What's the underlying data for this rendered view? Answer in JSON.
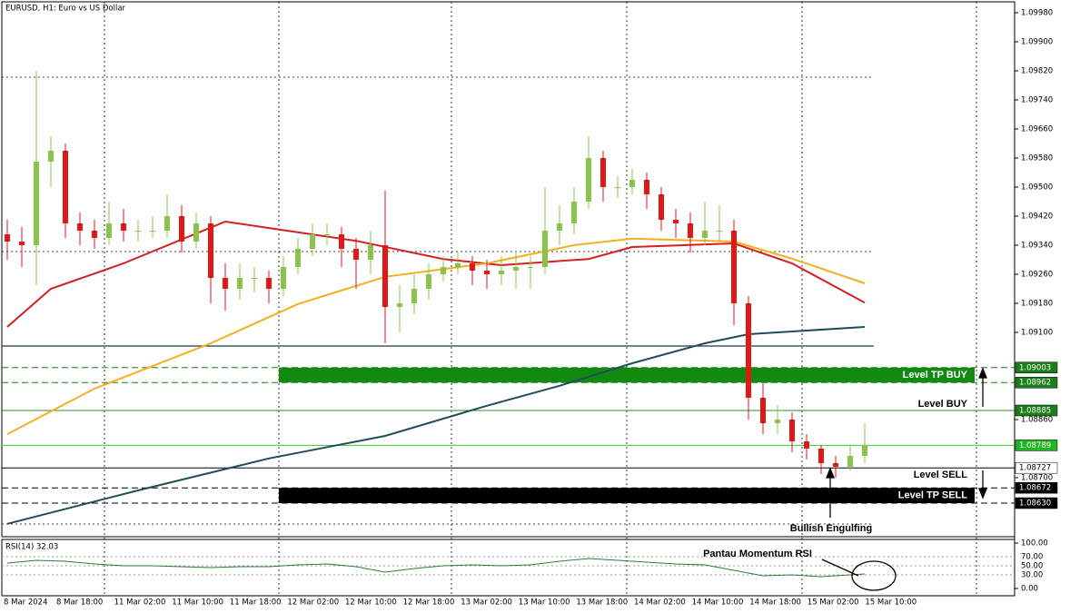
{
  "header": {
    "title": "EURUSD, H1:  Euro vs US Dollar"
  },
  "price_axis": {
    "ticks": [
      {
        "value": 1.0998,
        "label": "1.09980"
      },
      {
        "value": 1.099,
        "label": "1.09900"
      },
      {
        "value": 1.0982,
        "label": "1.09820"
      },
      {
        "value": 1.0974,
        "label": "1.09740"
      },
      {
        "value": 1.0966,
        "label": "1.09660"
      },
      {
        "value": 1.0958,
        "label": "1.09580"
      },
      {
        "value": 1.095,
        "label": "1.09500"
      },
      {
        "value": 1.0942,
        "label": "1.09420"
      },
      {
        "value": 1.0934,
        "label": "1.09340"
      },
      {
        "value": 1.0926,
        "label": "1.09260"
      },
      {
        "value": 1.0918,
        "label": "1.09180"
      },
      {
        "value": 1.091,
        "label": "1.09100"
      },
      {
        "value": 1.0886,
        "label": "1.08860"
      },
      {
        "value": 1.087,
        "label": "1.08700"
      }
    ]
  },
  "levels": [
    {
      "value": 1.09003,
      "label": "1.09003",
      "style": "dashed",
      "color": "#1b7f1b",
      "box": "#1b7f1b"
    },
    {
      "value": 1.08962,
      "label": "1.08962",
      "style": "dashed",
      "color": "#1b7f1b",
      "box": "#1b7f1b"
    },
    {
      "value": 1.08885,
      "label": "1.08885",
      "style": "solid",
      "color": "#2e8b2e",
      "box": "#1b7f1b"
    },
    {
      "value": 1.08789,
      "label": "1.08789",
      "style": "solid",
      "color": "#33cc33",
      "box": "#22b522"
    },
    {
      "value": 1.08727,
      "label": "1.08727",
      "style": "solid",
      "color": "#000000",
      "box": "#ffffff"
    },
    {
      "value": 1.08672,
      "label": "1.08672",
      "style": "dashed",
      "color": "#000000",
      "box": "#000000"
    },
    {
      "value": 1.0863,
      "label": "1.08630",
      "style": "dashed",
      "color": "#000000",
      "box": "#000000"
    }
  ],
  "annotations": {
    "tp_buy": "Level TP BUY",
    "buy": "Level BUY",
    "sell": "Level SELL",
    "tp_sell": "Level TP SELL",
    "engulfing": "Bullish Engulfing",
    "rsi_note": "Pantau Momentum RSI"
  },
  "candles": {
    "open": [
      1.0937,
      1.0935,
      1.0934,
      1.0957,
      1.096,
      1.094,
      1.0938,
      1.0936,
      1.094,
      1.0938,
      1.0938,
      1.0938,
      1.0942,
      1.0935,
      1.094,
      1.0925,
      1.0922,
      1.0925,
      1.0925,
      1.0922,
      1.0928,
      1.0933,
      1.0937,
      1.0937,
      1.0933,
      1.093,
      1.0934,
      1.0917,
      1.0918,
      1.0922,
      1.0926,
      1.0928,
      1.0929,
      1.0927,
      1.0926,
      1.0927,
      1.0928,
      1.0928,
      1.0938,
      1.094,
      1.0946,
      1.0958,
      1.095,
      1.095,
      1.0952,
      1.0948,
      1.0941,
      1.094,
      1.0936,
      1.0938,
      1.0938,
      1.0918,
      1.0892,
      1.0885,
      1.0886,
      1.088,
      1.0878,
      1.0874,
      1.0873,
      1.0876
    ],
    "high": [
      1.0941,
      1.0939,
      1.0982,
      1.0964,
      1.0962,
      1.0943,
      1.0941,
      1.0946,
      1.0944,
      1.0941,
      1.0942,
      1.0948,
      1.0945,
      1.0943,
      1.0942,
      1.0929,
      1.0929,
      1.0928,
      1.0927,
      1.0931,
      1.0936,
      1.094,
      1.094,
      1.0939,
      1.0936,
      1.0938,
      1.0949,
      1.0923,
      1.0926,
      1.0929,
      1.0931,
      1.0932,
      1.0931,
      1.093,
      1.0931,
      1.0932,
      1.0931,
      1.095,
      1.0945,
      1.095,
      1.0964,
      1.096,
      1.0953,
      1.0955,
      1.0954,
      1.095,
      1.0944,
      1.0943,
      1.0946,
      1.0945,
      1.0941,
      1.092,
      1.0896,
      1.089,
      1.0888,
      1.0882,
      1.0879,
      1.0876,
      1.0879,
      1.0885
    ],
    "low": [
      1.093,
      1.0928,
      1.0923,
      1.095,
      1.0936,
      1.0934,
      1.0933,
      1.0934,
      1.0935,
      1.0935,
      1.0936,
      1.0936,
      1.0932,
      1.0933,
      1.0918,
      1.0916,
      1.0919,
      1.0921,
      1.0918,
      1.092,
      1.0926,
      1.0931,
      1.0934,
      1.0928,
      1.0922,
      1.0926,
      1.0907,
      1.091,
      1.0915,
      1.0919,
      1.0924,
      1.0926,
      1.0923,
      1.0922,
      1.0923,
      1.0922,
      1.0922,
      1.0926,
      1.0934,
      1.0937,
      1.0944,
      1.0946,
      1.0947,
      1.0948,
      1.0944,
      1.0938,
      1.0936,
      1.0932,
      1.0934,
      1.0935,
      1.0912,
      1.0886,
      1.0882,
      1.0882,
      1.0877,
      1.0875,
      1.0871,
      1.087,
      1.0872,
      1.0874
    ],
    "close": [
      1.0935,
      1.0934,
      1.0957,
      1.096,
      1.094,
      1.0938,
      1.0936,
      1.094,
      1.0938,
      1.0938,
      1.0938,
      1.0942,
      1.0935,
      1.094,
      1.0925,
      1.0922,
      1.0925,
      1.0925,
      1.0922,
      1.0928,
      1.0933,
      1.0937,
      1.0937,
      1.0933,
      1.093,
      1.0934,
      1.0917,
      1.0918,
      1.0922,
      1.0926,
      1.0928,
      1.0929,
      1.0927,
      1.0926,
      1.0927,
      1.0928,
      1.0928,
      1.0938,
      1.094,
      1.0946,
      1.0958,
      1.095,
      1.095,
      1.0952,
      1.0948,
      1.0941,
      1.094,
      1.0936,
      1.0938,
      1.0938,
      1.0918,
      1.0892,
      1.0885,
      1.0886,
      1.088,
      1.0878,
      1.0874,
      1.0873,
      1.0876,
      1.0879
    ]
  },
  "moving_averages": [
    {
      "color": "#d42020",
      "x": [
        0,
        3,
        8,
        15,
        24,
        30,
        34,
        40,
        43,
        50,
        54,
        59
      ],
      "y": [
        1.09115,
        1.0922,
        1.0929,
        1.09405,
        1.09352,
        1.09302,
        1.09285,
        1.09302,
        1.09335,
        1.09345,
        1.0929,
        1.09182
      ]
    },
    {
      "color": "#f2b01e",
      "x": [
        0,
        6,
        14,
        20,
        26,
        33,
        39,
        43,
        50,
        54,
        59
      ],
      "y": [
        1.0882,
        1.08945,
        1.0907,
        1.09178,
        1.09253,
        1.0929,
        1.0934,
        1.09358,
        1.0935,
        1.09303,
        1.09235
      ]
    },
    {
      "color": "#1f4e5a",
      "x": [
        0,
        9,
        18,
        26,
        33,
        38,
        43,
        48,
        51,
        59
      ],
      "y": [
        1.08573,
        1.08665,
        1.08753,
        1.08815,
        1.08898,
        1.08953,
        1.09015,
        1.0907,
        1.09095,
        1.09115
      ]
    }
  ],
  "rsi": {
    "label": "RSI(14) 32.03",
    "ticks": [
      {
        "value": 100,
        "label": "100.00"
      },
      {
        "value": 70,
        "label": "70.00"
      },
      {
        "value": 50,
        "label": "50.00"
      },
      {
        "value": 30,
        "label": "30.00"
      },
      {
        "value": 0,
        "label": "0.00"
      }
    ],
    "x": [
      0,
      2,
      4,
      6,
      8,
      10,
      12,
      14,
      16,
      18,
      20,
      22,
      24,
      26,
      28,
      30,
      32,
      34,
      36,
      38,
      40,
      42,
      44,
      46,
      48,
      50,
      52,
      54,
      56,
      58,
      59
    ],
    "y": [
      56,
      62,
      60,
      54,
      50,
      50,
      48,
      46,
      48,
      48,
      52,
      54,
      48,
      36,
      44,
      50,
      52,
      50,
      52,
      60,
      66,
      62,
      58,
      54,
      52,
      40,
      28,
      30,
      26,
      30,
      32.03
    ]
  },
  "time_axis": [
    "8 Mar 2024",
    "8 Mar 18:00",
    "11 Mar 02:00",
    "11 Mar 10:00",
    "11 Mar 18:00",
    "12 Mar 02:00",
    "12 Mar 10:00",
    "12 Mar 18:00",
    "13 Mar 02:00",
    "13 Mar 10:00",
    "13 Mar 18:00",
    "14 Mar 02:00",
    "14 Mar 10:00",
    "14 Mar 18:00",
    "15 Mar 02:00",
    "15 Mar 10:00"
  ]
}
